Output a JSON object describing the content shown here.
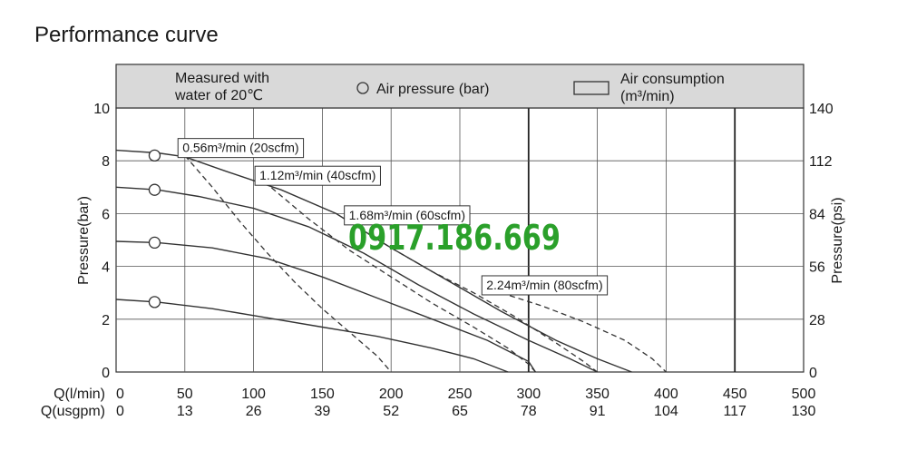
{
  "chart_data": {
    "type": "line",
    "title": "Performance curve",
    "header": {
      "note_line1": "Measured with",
      "note_line2": "water of 20℃",
      "legend_pressure": "Air pressure (bar)",
      "legend_consumption_line1": "Air consumption",
      "legend_consumption_line2": "(m³/min)"
    },
    "ylabel_left": "Pressure(bar)",
    "ylabel_right": "Pressure(psi)",
    "x_row_labels": [
      "Q(l/min)",
      "Q(usgpm)"
    ],
    "x_ticks_lmin": [
      "0",
      "50",
      "100",
      "150",
      "200",
      "250",
      "300",
      "350",
      "400",
      "450",
      "500"
    ],
    "x_ticks_usgpm": [
      "0",
      "13",
      "26",
      "39",
      "52",
      "65",
      "78",
      "91",
      "104",
      "117",
      "130"
    ],
    "y_ticks_bar": [
      "0",
      "2",
      "4",
      "6",
      "8",
      "10"
    ],
    "y_ticks_psi": [
      "0",
      "28",
      "56",
      "84",
      "112",
      "140"
    ],
    "xlim": [
      0,
      500
    ],
    "ylim": [
      0,
      10
    ],
    "grid": true,
    "pressure_series": [
      {
        "name": "",
        "marker": [
          28,
          8.2
        ],
        "points": [
          [
            0,
            8.4
          ],
          [
            30,
            8.3
          ],
          [
            50,
            8.15
          ],
          [
            80,
            7.6
          ],
          [
            120,
            6.9
          ],
          [
            160,
            6.0
          ],
          [
            200,
            4.7
          ],
          [
            240,
            3.5
          ],
          [
            280,
            2.3
          ],
          [
            320,
            1.2
          ],
          [
            350,
            0.5
          ],
          [
            375,
            0
          ]
        ]
      },
      {
        "name": "",
        "marker": [
          28,
          6.9
        ],
        "points": [
          [
            0,
            7.0
          ],
          [
            30,
            6.9
          ],
          [
            60,
            6.65
          ],
          [
            100,
            6.2
          ],
          [
            140,
            5.5
          ],
          [
            180,
            4.5
          ],
          [
            220,
            3.3
          ],
          [
            260,
            2.2
          ],
          [
            300,
            1.2
          ],
          [
            330,
            0.5
          ],
          [
            350,
            0
          ]
        ]
      },
      {
        "name": "",
        "marker": [
          28,
          4.9
        ],
        "points": [
          [
            0,
            4.95
          ],
          [
            30,
            4.9
          ],
          [
            70,
            4.7
          ],
          [
            110,
            4.3
          ],
          [
            150,
            3.6
          ],
          [
            190,
            2.8
          ],
          [
            230,
            2.0
          ],
          [
            270,
            1.2
          ],
          [
            300,
            0.4
          ],
          [
            305,
            0
          ]
        ]
      },
      {
        "name": "",
        "marker": [
          28,
          2.65
        ],
        "points": [
          [
            0,
            2.75
          ],
          [
            30,
            2.65
          ],
          [
            70,
            2.4
          ],
          [
            110,
            2.05
          ],
          [
            150,
            1.7
          ],
          [
            190,
            1.35
          ],
          [
            230,
            0.9
          ],
          [
            260,
            0.5
          ],
          [
            280,
            0.1
          ],
          [
            285,
            0
          ]
        ]
      }
    ],
    "consumption_series": [
      {
        "label": "0.56m³/min (20scfm)",
        "label_at": [
          45,
          8.5
        ],
        "points": [
          [
            50,
            8.2
          ],
          [
            70,
            7.0
          ],
          [
            90,
            5.7
          ],
          [
            110,
            4.5
          ],
          [
            130,
            3.4
          ],
          [
            150,
            2.4
          ],
          [
            170,
            1.5
          ],
          [
            190,
            0.6
          ],
          [
            200,
            0
          ]
        ]
      },
      {
        "label": "1.12m³/min (40scfm)",
        "label_at": [
          101,
          7.45
        ],
        "points": [
          [
            108,
            7.2
          ],
          [
            140,
            5.8
          ],
          [
            170,
            4.6
          ],
          [
            200,
            3.6
          ],
          [
            230,
            2.6
          ],
          [
            260,
            1.7
          ],
          [
            285,
            0.9
          ],
          [
            300,
            0.3
          ],
          [
            305,
            0
          ]
        ]
      },
      {
        "label": "1.68m³/min (60scfm)",
        "label_at": [
          166,
          5.95
        ],
        "points": [
          [
            172,
            5.6
          ],
          [
            200,
            4.7
          ],
          [
            230,
            3.8
          ],
          [
            260,
            3.0
          ],
          [
            290,
            2.1
          ],
          [
            320,
            1.1
          ],
          [
            340,
            0.4
          ],
          [
            350,
            0
          ]
        ]
      },
      {
        "label": "2.24m³/min (80scfm)",
        "label_at": [
          266,
          3.3
        ],
        "points": [
          [
            280,
            3.0
          ],
          [
            310,
            2.5
          ],
          [
            340,
            1.9
          ],
          [
            370,
            1.2
          ],
          [
            390,
            0.5
          ],
          [
            400,
            0
          ]
        ]
      }
    ],
    "colors": {
      "curve": "#333333",
      "grid": "#555555",
      "header_bg": "#d9d9d9",
      "watermark": "#2aa02a"
    }
  },
  "watermark": "0917.186.669"
}
